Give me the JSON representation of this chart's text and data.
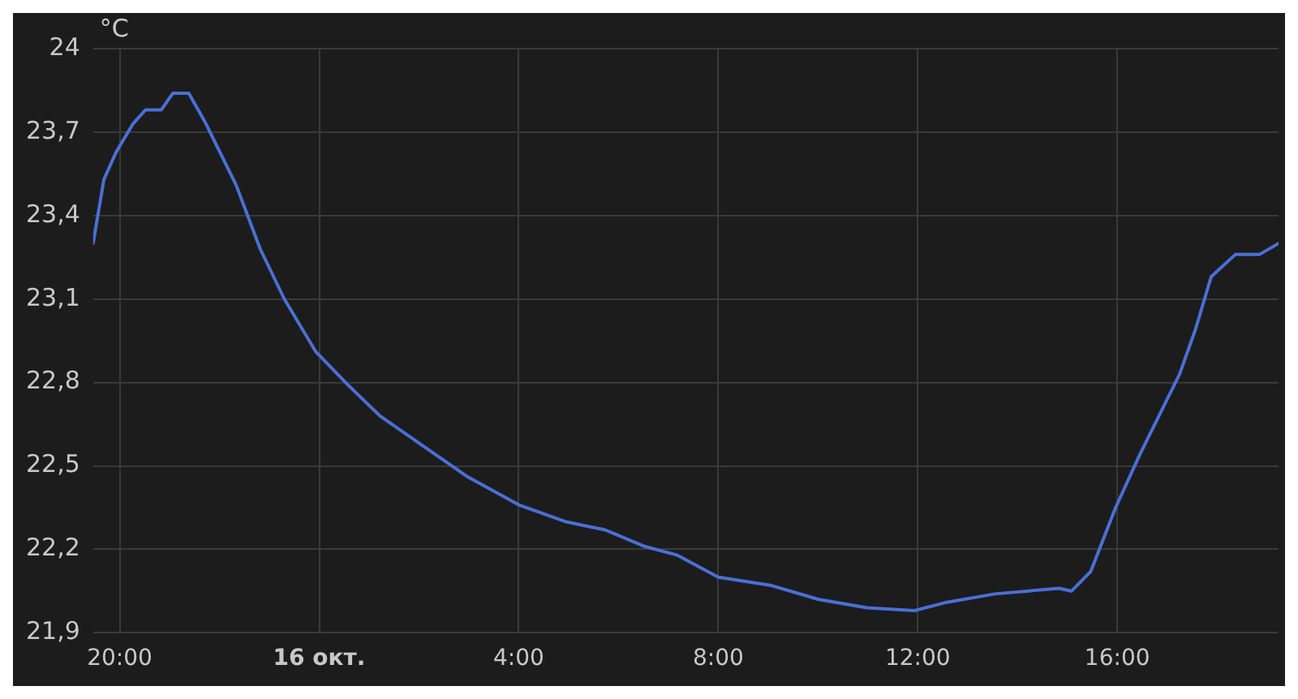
{
  "chart_data": {
    "type": "line",
    "ylabel": "°C",
    "x": [
      "--10-15T19:28",
      "--10-15T19:41",
      "--10-15T19:56",
      "--10-15T20:16",
      "--10-15T20:31",
      "--10-15T20:50",
      "--10-15T21:04",
      "--10-15T21:23",
      "--10-15T21:42",
      "--10-15T22:20",
      "--10-15T22:49",
      "--10-15T23:18",
      "--10-15T23:56",
      "--10-16T00:35",
      "--10-16T01:13",
      "--10-16T02:01",
      "--10-16T02:59",
      "--10-16T04:00",
      "--10-16T04:56",
      "--10-16T05:44",
      "--10-16T06:32",
      "--10-16T07:10",
      "--10-16T08:00",
      "--10-16T09:04",
      "--10-16T10:01",
      "--10-16T10:59",
      "--10-16T11:56",
      "--10-16T12:35",
      "--10-16T13:33",
      "--10-16T14:50",
      "--10-16T15:05",
      "--10-16T15:28",
      "--10-16T15:58",
      "--10-16T16:27",
      "--10-16T17:15",
      "--10-16T17:34",
      "--10-16T17:53",
      "--10-16T18:22",
      "--10-16T18:51",
      "--10-16T19:14"
    ],
    "series": [
      {
        "color": "#4a6fd6",
        "values": [
          23.3,
          23.53,
          23.63,
          23.73,
          23.78,
          23.78,
          23.84,
          23.84,
          23.74,
          23.51,
          23.28,
          23.1,
          22.91,
          22.79,
          22.68,
          22.58,
          22.46,
          22.36,
          22.3,
          22.27,
          22.21,
          22.18,
          22.1,
          22.07,
          22.02,
          21.99,
          21.98,
          22.01,
          22.04,
          22.06,
          22.05,
          22.12,
          22.35,
          22.54,
          22.83,
          22.99,
          23.18,
          23.26,
          23.26,
          23.3
        ]
      }
    ],
    "xlim": [
      "--10-15T19:28",
      "--10-16T19:14"
    ],
    "xticks": [
      {
        "value": "--10-15T20:00",
        "label": "20:00"
      },
      {
        "value": "--10-16T00:00",
        "label": "16 окт."
      },
      {
        "value": "--10-16T04:00",
        "label": "4:00"
      },
      {
        "value": "--10-16T08:00",
        "label": "8:00"
      },
      {
        "value": "--10-16T12:00",
        "label": "12:00"
      },
      {
        "value": "--10-16T16:00",
        "label": "16:00"
      }
    ],
    "ylim": [
      21.9,
      24
    ],
    "yticks": [
      {
        "value": 21.9,
        "label": "21,9"
      },
      {
        "value": 22.2,
        "label": "22,2"
      },
      {
        "value": 22.5,
        "label": "22,5"
      },
      {
        "value": 22.8,
        "label": "22,8"
      },
      {
        "value": 23.1,
        "label": "23,1"
      },
      {
        "value": 23.4,
        "label": "23,4"
      },
      {
        "value": 23.7,
        "label": "23,7"
      },
      24
    ],
    "grid": true,
    "legend": false,
    "marker": "none",
    "line_style": "solid"
  }
}
